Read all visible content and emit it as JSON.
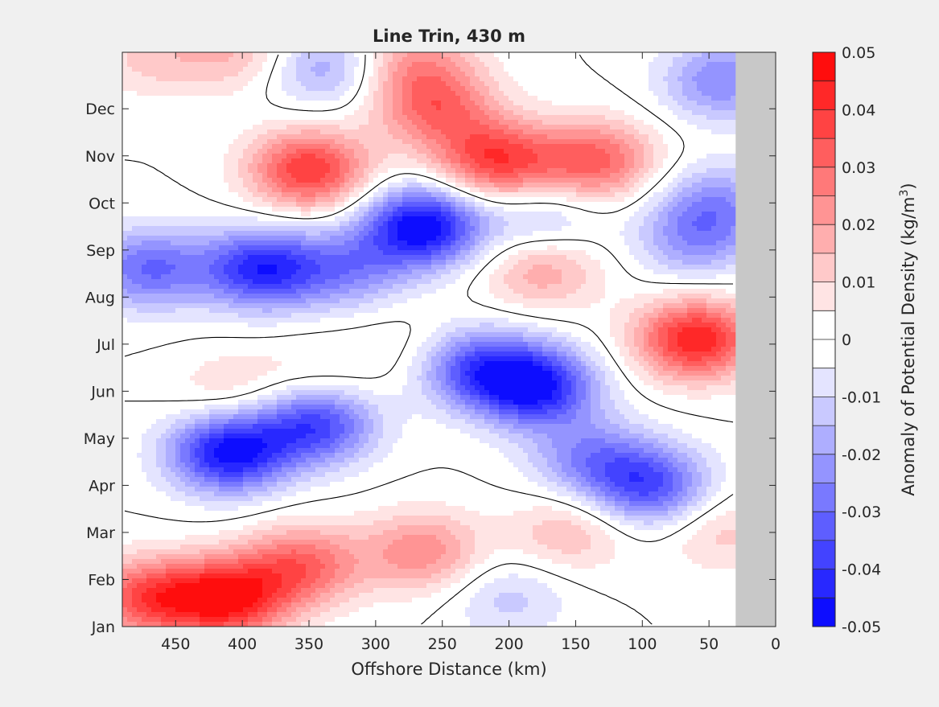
{
  "chart_data": {
    "type": "heatmap",
    "title": "Line Trin, 430 m",
    "xlabel": "Offshore Distance (km)",
    "x_ticks": [
      450,
      400,
      350,
      300,
      250,
      200,
      150,
      100,
      50,
      0
    ],
    "xlim": [
      490,
      0
    ],
    "y_ticks": [
      "Jan",
      "Feb",
      "Mar",
      "Apr",
      "May",
      "Jun",
      "Jul",
      "Aug",
      "Sep",
      "Oct",
      "Nov",
      "Dec"
    ],
    "ylim": [
      0,
      12.2
    ],
    "colorbar": {
      "label": "Anomaly of Potential Density (kg/m",
      "label_sup": "3",
      "label_end": ")",
      "ticks": [
        "0.05",
        "0.04",
        "0.03",
        "0.02",
        "0.01",
        "0",
        "-0.01",
        "-0.02",
        "-0.03",
        "-0.04",
        "-0.05"
      ],
      "range": [
        -0.05,
        0.05
      ],
      "levels": 20
    },
    "colors": {
      "positive": "#ff0000",
      "negative": "#0000ff",
      "zero": "#ffffff",
      "no_data": "#c8c8c8"
    },
    "no_data_x_range": [
      30,
      0
    ],
    "features": [
      {
        "x": 350,
        "month": 9.7,
        "value": 0.04
      },
      {
        "x": 400,
        "month": 12.2,
        "value": 0.015
      },
      {
        "x": 465,
        "month": 12.1,
        "value": 0.012
      },
      {
        "x": 255,
        "month": 11.0,
        "value": 0.028
      },
      {
        "x": 270,
        "month": 12.0,
        "value": 0.02
      },
      {
        "x": 210,
        "month": 9.9,
        "value": 0.038
      },
      {
        "x": 135,
        "month": 9.9,
        "value": 0.032
      },
      {
        "x": 175,
        "month": 7.6,
        "value": 0.02
      },
      {
        "x": 60,
        "month": 6.1,
        "value": 0.045
      },
      {
        "x": 265,
        "month": 8.5,
        "value": -0.05
      },
      {
        "x": 385,
        "month": 7.6,
        "value": -0.042
      },
      {
        "x": 470,
        "month": 7.6,
        "value": -0.03
      },
      {
        "x": 320,
        "month": 7.6,
        "value": -0.022
      },
      {
        "x": 410,
        "month": 3.7,
        "value": -0.048
      },
      {
        "x": 345,
        "month": 4.3,
        "value": -0.038
      },
      {
        "x": 180,
        "month": 5.1,
        "value": -0.045
      },
      {
        "x": 225,
        "month": 5.5,
        "value": -0.032
      },
      {
        "x": 95,
        "month": 3.0,
        "value": -0.035
      },
      {
        "x": 140,
        "month": 3.6,
        "value": -0.022
      },
      {
        "x": 60,
        "month": 8.2,
        "value": -0.02
      },
      {
        "x": 45,
        "month": 9.0,
        "value": -0.02
      },
      {
        "x": 40,
        "month": 11.6,
        "value": -0.025
      },
      {
        "x": 340,
        "month": 11.9,
        "value": -0.02
      },
      {
        "x": 200,
        "month": 0.6,
        "value": -0.012
      },
      {
        "x": 175,
        "month": 8.6,
        "value": -0.015
      },
      {
        "x": 410,
        "month": 0.6,
        "value": 0.045
      },
      {
        "x": 470,
        "month": 0.6,
        "value": 0.035
      },
      {
        "x": 355,
        "month": 1.3,
        "value": 0.03
      },
      {
        "x": 265,
        "month": 1.6,
        "value": 0.024
      },
      {
        "x": 155,
        "month": 2.0,
        "value": 0.015
      },
      {
        "x": 410,
        "month": 5.0,
        "value": 0.01
      },
      {
        "x": 345,
        "month": 5.3,
        "value": 0.008
      },
      {
        "x": 275,
        "month": 5.9,
        "value": 0.006
      },
      {
        "x": 40,
        "month": 2.0,
        "value": 0.012
      }
    ]
  }
}
